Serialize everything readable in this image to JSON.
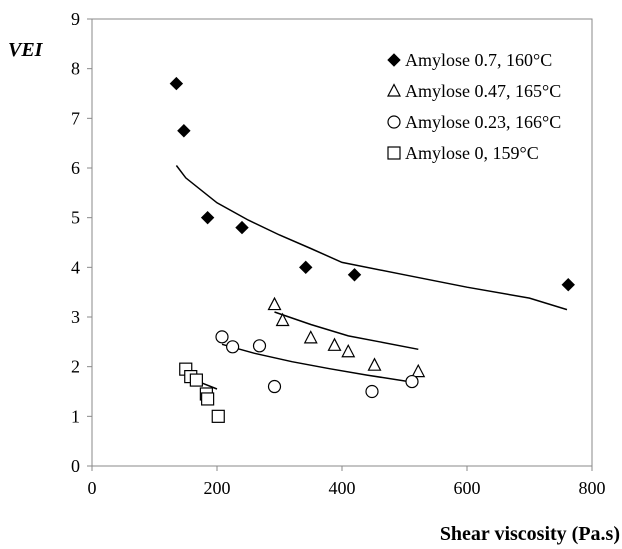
{
  "chart_data": {
    "type": "scatter",
    "ylabel": "VEI",
    "xlabel": "Shear viscosity (Pa.s)",
    "xlim": [
      0,
      800
    ],
    "ylim": [
      0,
      9
    ],
    "xticks": [
      "0",
      "200",
      "400",
      "600",
      "800"
    ],
    "yticks": [
      "0",
      "1",
      "2",
      "3",
      "4",
      "5",
      "6",
      "7",
      "8",
      "9"
    ],
    "grid": false,
    "legend_position": "top-right",
    "series": [
      {
        "name": "Amylose 0.7, 160°C",
        "marker": "diamond-filled",
        "color": "#000000",
        "x": [
          135,
          147,
          185,
          240,
          342,
          420,
          762
        ],
        "y": [
          7.7,
          6.75,
          5.0,
          4.8,
          4.0,
          3.85,
          3.65
        ],
        "fit_x": [
          135,
          150,
          200,
          250,
          300,
          350,
          400,
          500,
          600,
          700,
          760
        ],
        "fit_y": [
          6.05,
          5.8,
          5.3,
          4.95,
          4.65,
          4.38,
          4.1,
          3.85,
          3.6,
          3.38,
          3.15
        ]
      },
      {
        "name": "Amylose 0.47, 165°C",
        "marker": "triangle-open",
        "color": "#000000",
        "x": [
          292,
          305,
          350,
          388,
          410,
          452,
          522
        ],
        "y": [
          3.25,
          2.93,
          2.58,
          2.43,
          2.3,
          2.03,
          1.9
        ],
        "fit_x": [
          292,
          350,
          410,
          460,
          522
        ],
        "fit_y": [
          3.1,
          2.85,
          2.62,
          2.5,
          2.35
        ]
      },
      {
        "name": "Amylose 0.23, 166°C",
        "marker": "circle-open",
        "color": "#000000",
        "x": [
          208,
          225,
          268,
          292,
          448,
          512
        ],
        "y": [
          2.6,
          2.4,
          2.42,
          1.6,
          1.5,
          1.7
        ],
        "fit_x": [
          208,
          260,
          320,
          380,
          440,
          512
        ],
        "fit_y": [
          2.45,
          2.27,
          2.1,
          1.96,
          1.83,
          1.69
        ]
      },
      {
        "name": "Amylose 0, 159°C",
        "marker": "square-open",
        "color": "#000000",
        "x": [
          150,
          158,
          167,
          183,
          185,
          202
        ],
        "y": [
          1.95,
          1.8,
          1.73,
          1.45,
          1.35,
          1.0
        ],
        "fit_x": [
          148,
          170,
          200
        ],
        "fit_y": [
          1.78,
          1.7,
          1.55
        ]
      }
    ]
  }
}
